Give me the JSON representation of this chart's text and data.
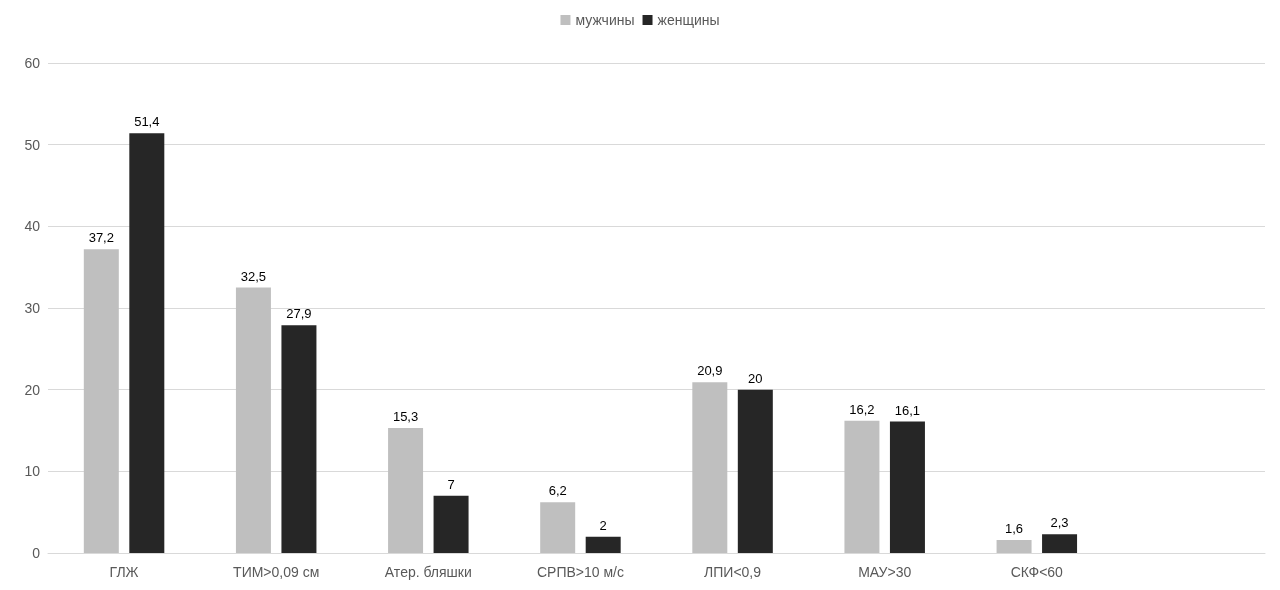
{
  "chart_data": {
    "type": "bar",
    "categories": [
      "ГЛЖ",
      "ТИМ>0,09 см",
      "Атер. бляшки",
      "СРПВ>10 м/с",
      "ЛПИ<0,9",
      "МАУ>30",
      "СКФ<60",
      null
    ],
    "series": [
      {
        "name": "мужчины",
        "color": "#bfbfbf",
        "values": [
          37.2,
          32.5,
          15.3,
          6.2,
          20.9,
          16.2,
          1.6,
          null
        ],
        "value_labels": [
          "37,2",
          "32,5",
          "15,3",
          "6,2",
          "20,9",
          "16,2",
          "1,6",
          null
        ]
      },
      {
        "name": "женщины",
        "color": "#262626",
        "values": [
          51.4,
          27.9,
          7,
          2,
          20,
          16.1,
          2.3,
          null
        ],
        "value_labels": [
          "51,4",
          "27,9",
          "7",
          "2",
          "20",
          "16,1",
          "2,3",
          null
        ]
      }
    ],
    "ylim": [
      0,
      60
    ],
    "yticks": [
      0,
      10,
      20,
      30,
      40,
      50,
      60
    ],
    "grid": "y",
    "legend": "top"
  }
}
